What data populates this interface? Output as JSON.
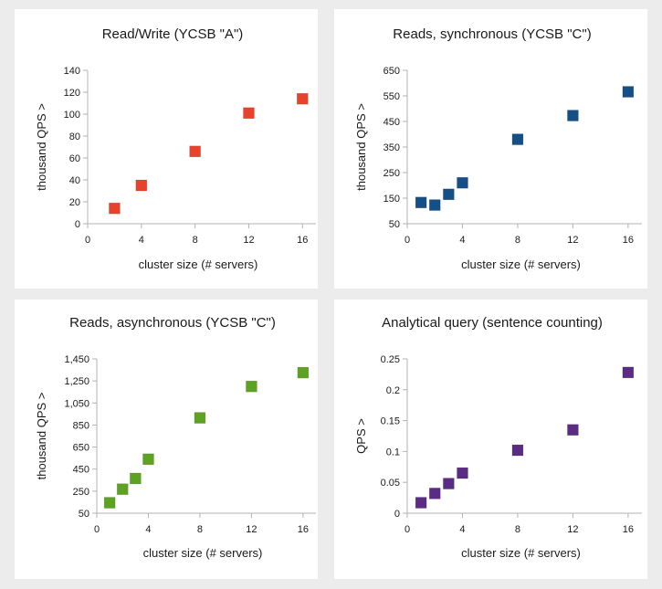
{
  "chart_data": [
    {
      "type": "scatter",
      "title": "Read/Write (YCSB \"A\")",
      "xlabel": "cluster size (# servers)",
      "ylabel": "thousand QPS  >",
      "xlim": [
        0,
        17
      ],
      "xticks": [
        0,
        4,
        8,
        12,
        16
      ],
      "xtick_labels": [
        "0",
        "4",
        "8",
        "12",
        "16"
      ],
      "ylim": [
        0,
        140
      ],
      "yticks": [
        0,
        20,
        40,
        60,
        80,
        100,
        120,
        140
      ],
      "ytick_labels": [
        "0",
        "20",
        "40",
        "60",
        "80",
        "100",
        "120",
        "140"
      ],
      "grid": "none",
      "series": [
        {
          "color": "#e8412c",
          "x": [
            2,
            4,
            8,
            12,
            16
          ],
          "y": [
            14,
            35,
            66,
            101,
            114
          ]
        }
      ]
    },
    {
      "type": "scatter",
      "title": "Reads, synchronous (YCSB \"C\")",
      "xlabel": "cluster size (# servers)",
      "ylabel": "thousand QPS  >",
      "xlim": [
        0,
        17
      ],
      "xticks": [
        0,
        4,
        8,
        12,
        16
      ],
      "xtick_labels": [
        "0",
        "4",
        "8",
        "12",
        "16"
      ],
      "ylim": [
        50,
        650
      ],
      "yticks": [
        50,
        150,
        250,
        350,
        450,
        550,
        650
      ],
      "ytick_labels": [
        "50",
        "150",
        "250",
        "350",
        "450",
        "550",
        "650"
      ],
      "grid": "none",
      "series": [
        {
          "color": "#164f86",
          "x": [
            1,
            2,
            3,
            4,
            8,
            12,
            16
          ],
          "y": [
            133,
            123,
            165,
            210,
            380,
            473,
            566
          ]
        }
      ]
    },
    {
      "type": "scatter",
      "title": "Reads, asynchronous (YCSB \"C\")",
      "xlabel": "cluster size (# servers)",
      "ylabel": "thousand QPS  >",
      "xlim": [
        0,
        17
      ],
      "xticks": [
        0,
        4,
        8,
        12,
        16
      ],
      "xtick_labels": [
        "0",
        "4",
        "8",
        "12",
        "16"
      ],
      "ylim": [
        50,
        1450
      ],
      "yticks": [
        50,
        250,
        450,
        650,
        850,
        1050,
        1250,
        1450
      ],
      "ytick_labels": [
        "50",
        "250",
        "450",
        "650",
        "850",
        "1,050",
        "1,250",
        "1,450"
      ],
      "grid": "none",
      "series": [
        {
          "color": "#5ea223",
          "x": [
            1,
            2,
            3,
            4,
            8,
            12,
            16
          ],
          "y": [
            145,
            268,
            365,
            540,
            915,
            1200,
            1325
          ]
        }
      ]
    },
    {
      "type": "scatter",
      "title": "Analytical query (sentence counting)",
      "xlabel": "cluster size (# servers)",
      "ylabel": "QPS >",
      "xlim": [
        0,
        17
      ],
      "xticks": [
        0,
        4,
        8,
        12,
        16
      ],
      "xtick_labels": [
        "0",
        "4",
        "8",
        "12",
        "16"
      ],
      "ylim": [
        0,
        0.25
      ],
      "yticks": [
        0,
        0.05,
        0.1,
        0.15,
        0.2,
        0.25
      ],
      "ytick_labels": [
        "0",
        "0.05",
        "0.1",
        "0.15",
        "0.2",
        "0.25"
      ],
      "grid": "none",
      "series": [
        {
          "color": "#5b2c83",
          "x": [
            1,
            2,
            3,
            4,
            8,
            12,
            16
          ],
          "y": [
            0.017,
            0.032,
            0.048,
            0.065,
            0.102,
            0.135,
            0.228
          ]
        }
      ]
    }
  ]
}
